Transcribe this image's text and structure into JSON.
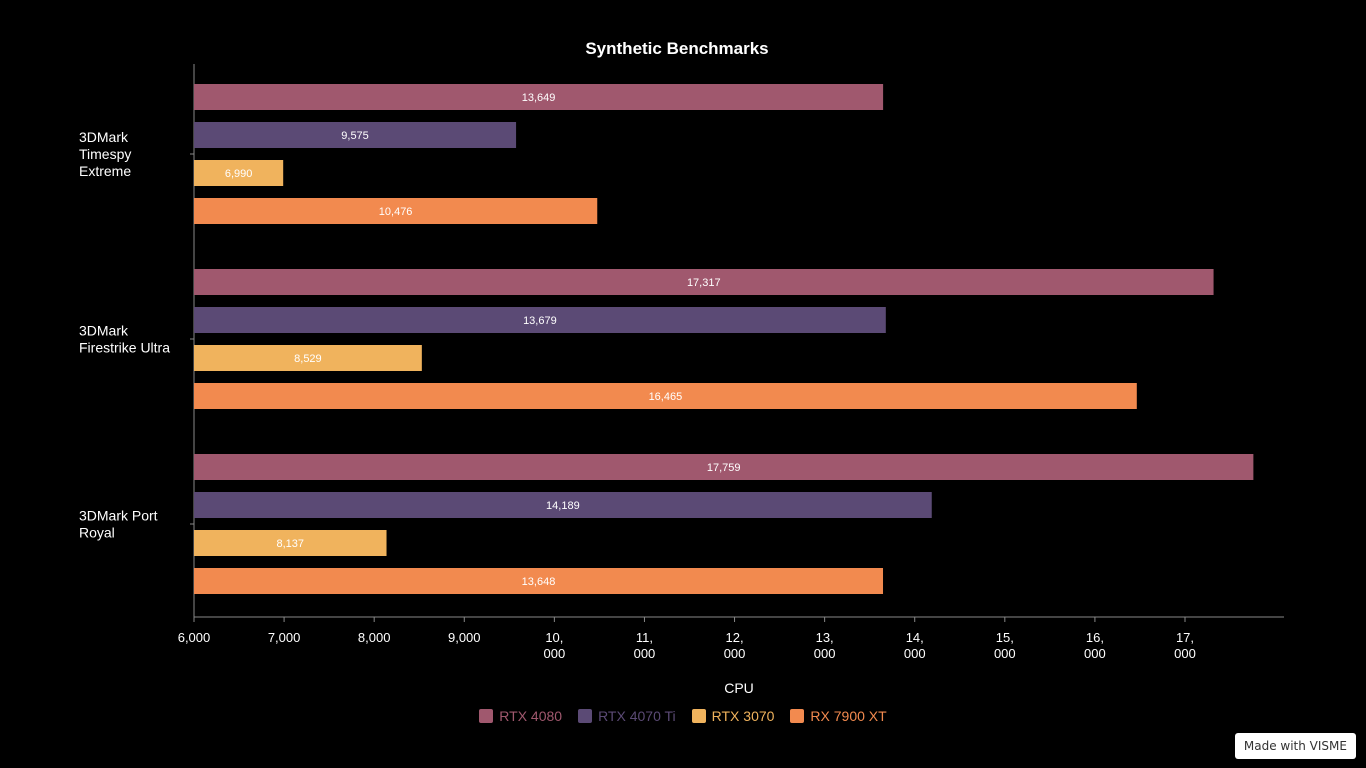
{
  "chart_data": {
    "type": "bar",
    "orientation": "horizontal",
    "title": "Synthetic Benchmarks",
    "xlabel": "CPU",
    "ylabel": "",
    "xlim": [
      6000,
      18000
    ],
    "x_ticks": [
      {
        "value": 6000,
        "lines": [
          "6,000"
        ]
      },
      {
        "value": 7000,
        "lines": [
          "7,000"
        ]
      },
      {
        "value": 8000,
        "lines": [
          "8,000"
        ]
      },
      {
        "value": 9000,
        "lines": [
          "9,000"
        ]
      },
      {
        "value": 10000,
        "lines": [
          "10,",
          "000"
        ]
      },
      {
        "value": 11000,
        "lines": [
          "11,",
          "000"
        ]
      },
      {
        "value": 12000,
        "lines": [
          "12,",
          "000"
        ]
      },
      {
        "value": 13000,
        "lines": [
          "13,",
          "000"
        ]
      },
      {
        "value": 14000,
        "lines": [
          "14,",
          "000"
        ]
      },
      {
        "value": 15000,
        "lines": [
          "15,",
          "000"
        ]
      },
      {
        "value": 16000,
        "lines": [
          "16,",
          "000"
        ]
      },
      {
        "value": 17000,
        "lines": [
          "17,",
          "000"
        ]
      }
    ],
    "categories": [
      {
        "name": "3DMark Timespy Extreme",
        "lines": [
          "3DMark",
          "Timespy",
          "Extreme"
        ]
      },
      {
        "name": "3DMark Firestrike Ultra",
        "lines": [
          "3DMark",
          "Firestrike Ultra"
        ]
      },
      {
        "name": "3DMark Port Royal",
        "lines": [
          "3DMark Port",
          "Royal"
        ]
      }
    ],
    "series": [
      {
        "name": "RTX 4080",
        "color": "#a0586e",
        "values": [
          13649,
          17317,
          17759
        ],
        "labels": [
          "13,649",
          "17,317",
          "17,759"
        ]
      },
      {
        "name": "RTX 4070 Ti",
        "color": "#5b4a75",
        "values": [
          9575,
          13679,
          14189
        ],
        "labels": [
          "9,575",
          "13,679",
          "14,189"
        ]
      },
      {
        "name": "RTX 3070",
        "color": "#f0b35d",
        "values": [
          6990,
          8529,
          8137
        ],
        "labels": [
          "6,990",
          "8,529",
          "8,137"
        ]
      },
      {
        "name": "RX 7900 XT",
        "color": "#f28a4f",
        "values": [
          10476,
          16465,
          13648
        ],
        "labels": [
          "10,476",
          "16,465",
          "13,648"
        ]
      }
    ],
    "grid": false,
    "legend": "bottom-center"
  },
  "watermark": "Made with VISME"
}
